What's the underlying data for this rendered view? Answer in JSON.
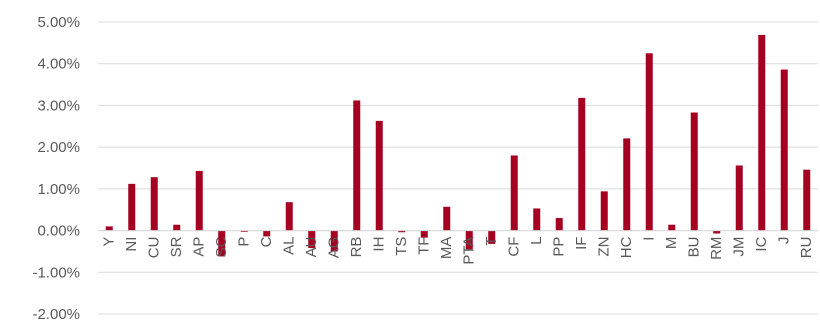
{
  "chart_data": {
    "type": "bar",
    "title": "",
    "xlabel": "",
    "ylabel": "",
    "categories": [
      "Y",
      "NI",
      "CU",
      "SR",
      "AP",
      "SC",
      "P",
      "C",
      "AL",
      "AU",
      "AG",
      "RB",
      "IH",
      "TS",
      "TF",
      "MA",
      "PTA",
      "T",
      "CF",
      "L",
      "PP",
      "IF",
      "ZN",
      "HC",
      "I",
      "M",
      "BU",
      "RM",
      "JM",
      "IC",
      "J",
      "RU"
    ],
    "values": [
      0.1,
      1.12,
      1.28,
      0.14,
      1.43,
      -0.62,
      -0.03,
      -0.14,
      0.68,
      -0.42,
      -0.5,
      3.12,
      2.63,
      -0.04,
      -0.17,
      0.57,
      -0.45,
      -0.32,
      1.8,
      0.53,
      0.3,
      3.18,
      0.94,
      2.21,
      4.25,
      0.14,
      2.83,
      -0.07,
      1.56,
      4.69,
      3.86,
      1.46
    ],
    "ylim": [
      -2,
      5
    ],
    "yticks": [
      -2,
      -1,
      0,
      1,
      2,
      3,
      4,
      5
    ],
    "ytick_labels": [
      "-2.00%",
      "-1.00%",
      "0.00%",
      "1.00%",
      "2.00%",
      "3.00%",
      "4.00%",
      "5.00%"
    ],
    "grid": true,
    "legend": "none",
    "bar_color": "#a50021"
  }
}
